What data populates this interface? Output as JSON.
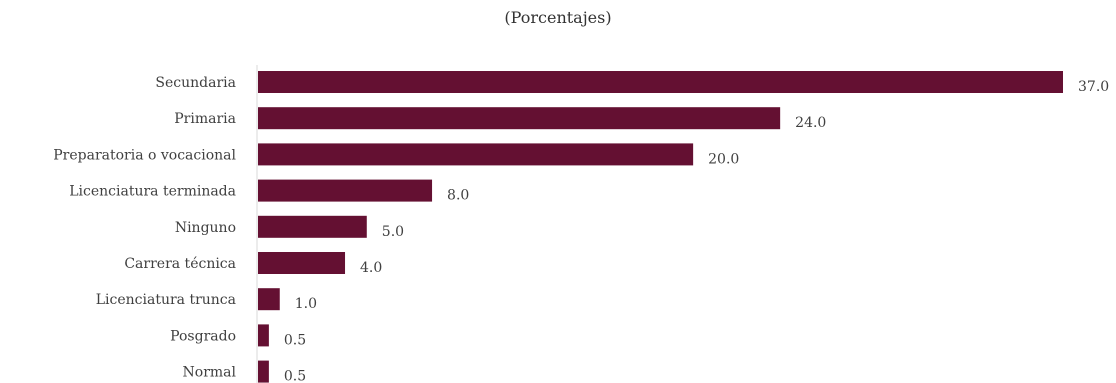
{
  "chart_data": {
    "type": "bar",
    "orientation": "horizontal",
    "subtitle": "(Porcentajes)",
    "categories": [
      "Secundaria",
      "Primaria",
      "Preparatoria o vocacional",
      "Licenciatura terminada",
      "Ninguno",
      "Carrera técnica",
      "Licenciatura trunca",
      "Posgrado",
      "Normal"
    ],
    "values": [
      37.0,
      24.0,
      20.0,
      8.0,
      5.0,
      4.0,
      1.0,
      0.5,
      0.5
    ],
    "value_labels": [
      "37.0",
      "24.0",
      "20.0",
      "8.0",
      "5.0",
      "4.0",
      "1.0",
      "0.5",
      "0.5"
    ],
    "xlim": [
      0,
      37
    ],
    "grid": false,
    "legend": "none",
    "bar_color": "#641032"
  }
}
